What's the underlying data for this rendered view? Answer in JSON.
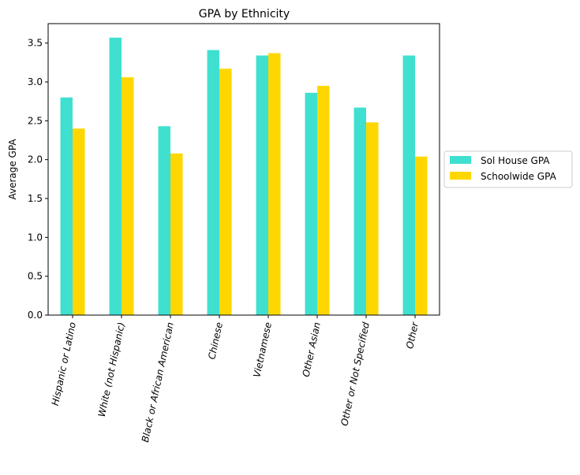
{
  "chart_data": {
    "type": "bar",
    "title": "GPA by Ethnicity",
    "xlabel": "",
    "ylabel": "Average GPA",
    "ylim": [
      0,
      3.75
    ],
    "yticks": [
      "0.0",
      "0.5",
      "1.0",
      "1.5",
      "2.0",
      "2.5",
      "3.0",
      "3.5"
    ],
    "grid": false,
    "legend_position": "right",
    "categories": [
      "Hispanic or Latino",
      "White (not Hispanic)",
      "Black or African American",
      "Chinese",
      "Vietnamese",
      "Other Asian",
      "Other or Not Specified",
      "Other"
    ],
    "series": [
      {
        "name": "Sol House GPA",
        "color": "#40E0D0",
        "values": [
          2.8,
          3.57,
          2.43,
          3.41,
          3.34,
          2.86,
          2.67,
          3.34
        ]
      },
      {
        "name": "Schoolwide GPA",
        "color": "#FFD700",
        "values": [
          2.4,
          3.06,
          2.08,
          3.17,
          3.37,
          2.95,
          2.48,
          2.04
        ]
      }
    ]
  }
}
